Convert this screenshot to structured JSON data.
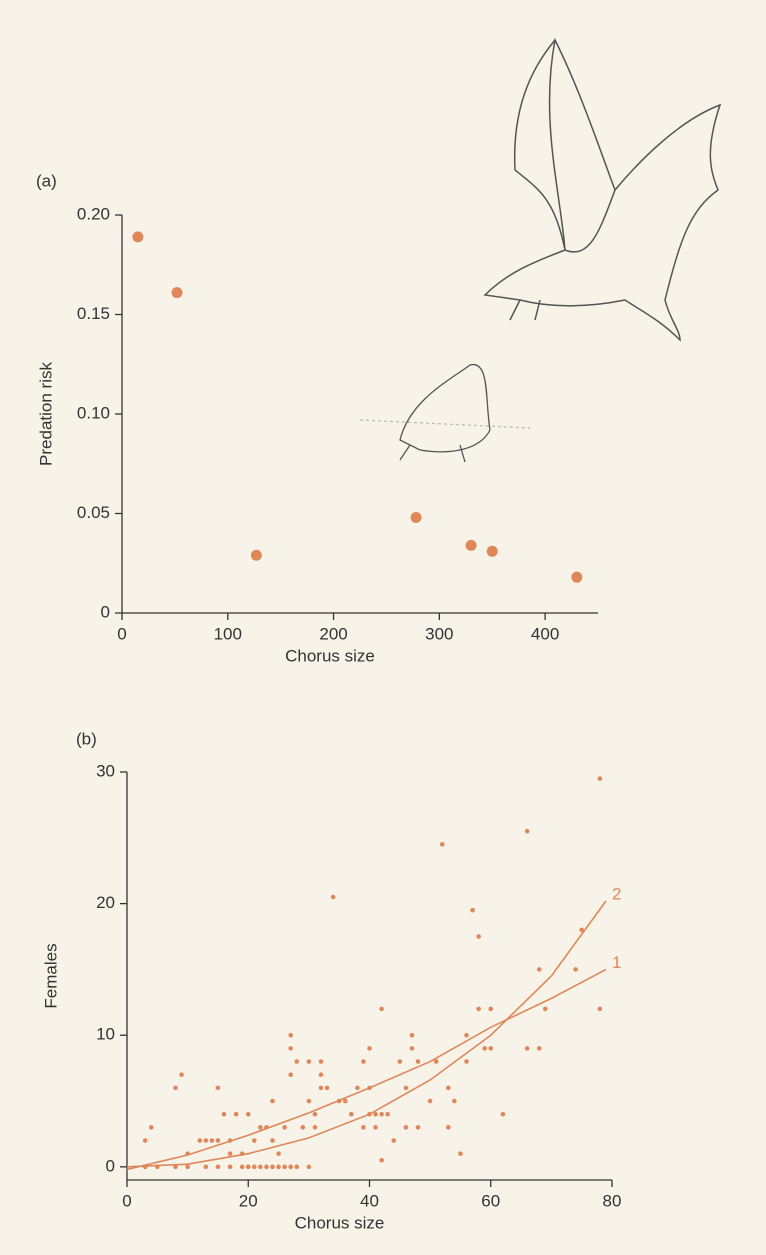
{
  "chart_data": [
    {
      "type": "scatter",
      "label": "(a)",
      "x_label": "Chorus size",
      "y_label": "Predation risk",
      "color": "#e0875a",
      "x": [
        15,
        52,
        127,
        278,
        330,
        350,
        430
      ],
      "values": [
        0.189,
        0.161,
        0.029,
        0.048,
        0.034,
        0.031,
        0.018
      ],
      "xlim": [
        0,
        450
      ],
      "ylim": [
        0,
        0.2
      ],
      "xticks": [
        0,
        100,
        200,
        300,
        400
      ],
      "yticks": [
        0,
        0.05,
        {
          "value": 0.1,
          "label": "0.10"
        },
        0.15,
        {
          "value": 0.2,
          "label": "0.20"
        }
      ]
    },
    {
      "type": "scatter",
      "label": "(b)",
      "x_label": "Chorus size",
      "y_label": "Females",
      "color": "#e0875a",
      "x": [
        3,
        5,
        8,
        10,
        13,
        15,
        17,
        19,
        20,
        21,
        22,
        23,
        24,
        25,
        26,
        27,
        28,
        30,
        42,
        3,
        4,
        8,
        9,
        10,
        12,
        13,
        14,
        15,
        15,
        16,
        17,
        17,
        18,
        19,
        20,
        21,
        22,
        23,
        24,
        24,
        25,
        26,
        27,
        27,
        27,
        28,
        29,
        30,
        30,
        31,
        31,
        32,
        32,
        32,
        33,
        34,
        35,
        36,
        37,
        38,
        39,
        39,
        40,
        40,
        40,
        41,
        41,
        42,
        42,
        43,
        44,
        45,
        46,
        46,
        47,
        47,
        48,
        48,
        50,
        51,
        52,
        53,
        53,
        54,
        55,
        56,
        56,
        57,
        58,
        58,
        59,
        60,
        60,
        62,
        66,
        66,
        68,
        68,
        69,
        74,
        75,
        78,
        78
      ],
      "values": [
        0,
        0,
        0,
        0,
        0,
        0,
        0,
        0,
        0,
        0,
        0,
        0,
        0,
        0,
        0,
        0,
        0,
        0,
        0.5,
        2,
        3,
        6,
        7,
        1,
        2,
        2,
        2,
        6,
        2,
        4,
        2,
        1,
        4,
        1,
        4,
        2,
        3,
        3,
        5,
        2,
        1,
        3,
        10,
        9,
        7,
        8,
        3,
        8,
        5,
        3,
        4,
        8,
        7,
        6,
        6,
        20.5,
        5,
        5,
        4,
        6,
        3,
        8,
        9,
        4,
        6,
        3,
        4,
        12,
        4,
        4,
        2,
        8,
        3,
        6,
        10,
        9,
        3,
        8,
        5,
        8,
        24.5,
        3,
        6,
        5,
        1,
        8,
        10,
        19.5,
        17.5,
        12,
        9,
        12,
        9,
        4,
        25.5,
        9,
        15,
        9,
        12,
        15,
        18,
        29.5,
        12
      ],
      "curves": [
        {
          "name": "1",
          "x": [
            0,
            10,
            20,
            30,
            40,
            50,
            60,
            70,
            79
          ],
          "values": [
            -0.2,
            0.9,
            2.4,
            4.1,
            6,
            8,
            10.6,
            12.8,
            15
          ]
        },
        {
          "name": "2",
          "x": [
            0,
            10,
            20,
            30,
            40,
            50,
            60,
            70,
            79
          ],
          "values": [
            0,
            0.2,
            1,
            2.2,
            4,
            6.6,
            10,
            14.5,
            20.2
          ]
        }
      ],
      "xlim": [
        0,
        80
      ],
      "ylim": [
        -1,
        30
      ],
      "xticks": [
        0,
        20,
        40,
        60,
        80
      ],
      "yticks": [
        0,
        10,
        20,
        30
      ]
    }
  ]
}
